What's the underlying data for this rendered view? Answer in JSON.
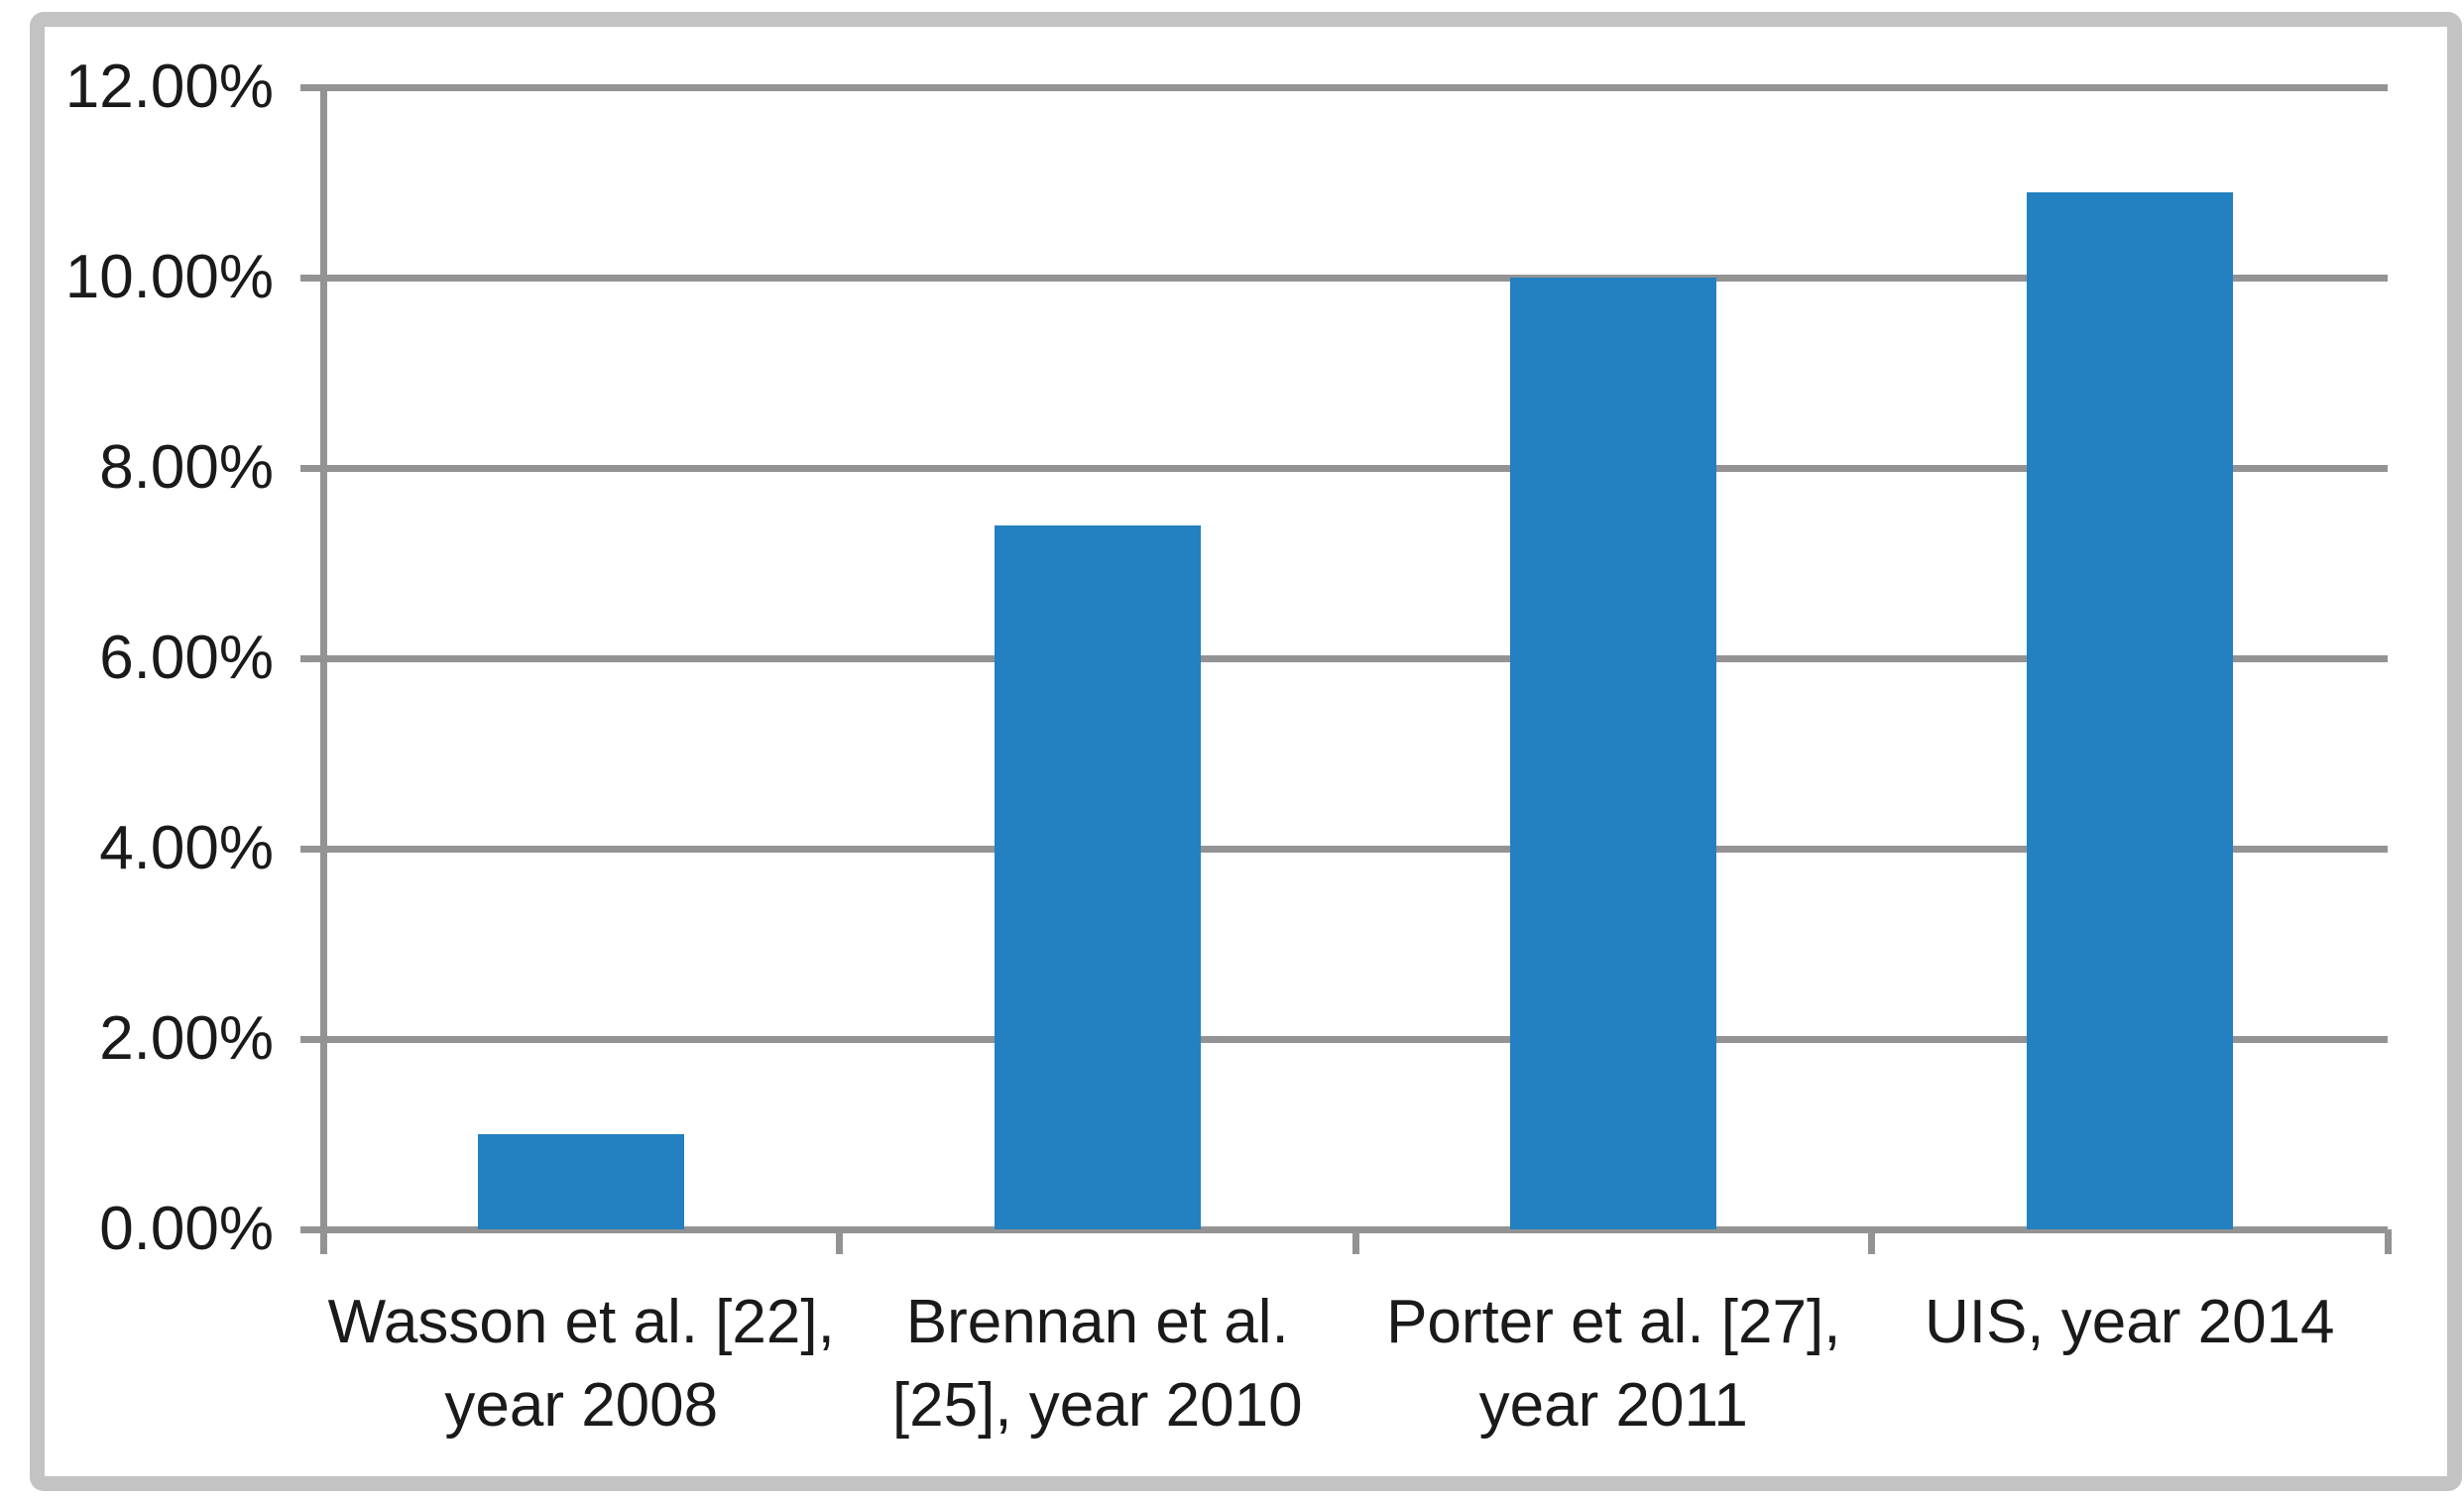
{
  "chart": {
    "bar_color": "#2380c1",
    "grid_color": "#939393",
    "frame_color": "#c3c3c3",
    "text_color": "#1a1a1a",
    "y_axis": {
      "tick_labels": [
        "0.00%",
        "2.00%",
        "4.00%",
        "6.00%",
        "8.00%",
        "10.00%",
        "12.00%"
      ],
      "min": 0,
      "max": 12,
      "step": 2
    },
    "x_axis": {
      "label_lines": [
        [
          "Wasson et al. [22],",
          "year 2008"
        ],
        [
          "Brennan et al.",
          "[25], year 2010"
        ],
        [
          "Porter et al. [27],",
          "year 2011"
        ],
        [
          "UIS, year 2014"
        ]
      ]
    }
  },
  "chart_data": {
    "type": "bar",
    "categories": [
      "Wasson et al. [22], year 2008",
      "Brennan et al. [25], year 2010",
      "Porter et al. [27], year 2011",
      "UIS, year 2014"
    ],
    "values": [
      1.0,
      7.4,
      10.0,
      10.9
    ],
    "unit": "%",
    "title": "",
    "xlabel": "",
    "ylabel": "",
    "ylim": [
      0,
      12
    ],
    "ytick_step": 2,
    "ytick_format": "percent-two-decimals",
    "grid": "horizontal",
    "legend": "none",
    "bar_color": "#2380c1"
  }
}
